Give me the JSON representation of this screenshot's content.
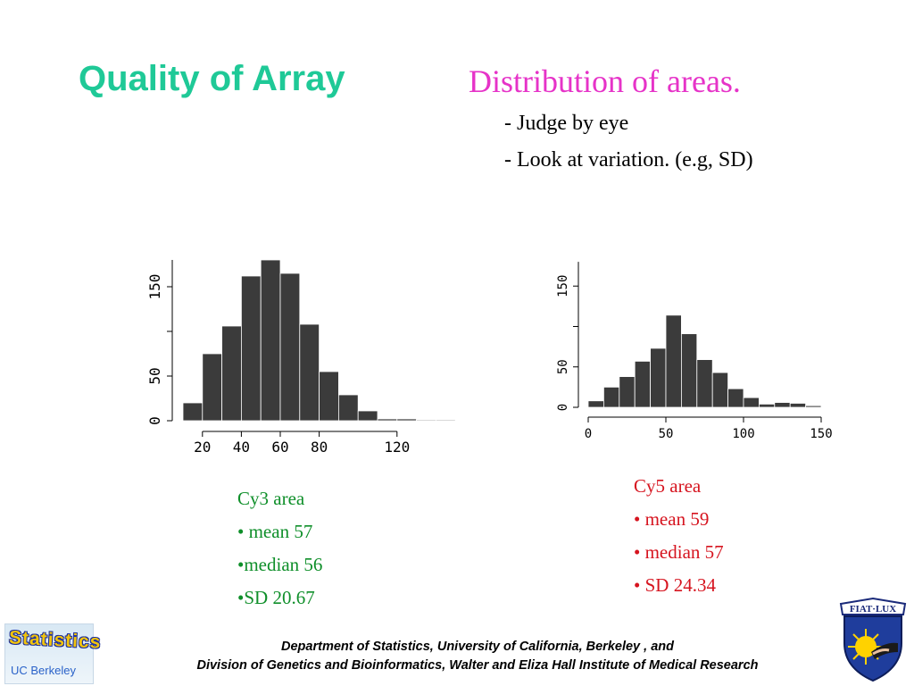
{
  "slide": {
    "title": "Quality of Array",
    "subtitle": "Distribution of areas.",
    "bullets": [
      "- Judge by eye",
      "- Look at variation. (e.g, SD)"
    ]
  },
  "chart_data": [
    {
      "type": "bar",
      "name": "Cy3 area histogram",
      "x_ticks": [
        20,
        40,
        60,
        80,
        120
      ],
      "y_ticks": [
        0,
        50,
        150
      ],
      "bin_width": 10,
      "bins": [
        10,
        20,
        30,
        40,
        50,
        60,
        70,
        80,
        90,
        100,
        110,
        120,
        130,
        140
      ],
      "values": [
        20,
        75,
        106,
        162,
        180,
        165,
        108,
        55,
        29,
        11,
        2,
        2,
        1,
        1
      ],
      "ylim": [
        0,
        180
      ]
    },
    {
      "type": "bar",
      "name": "Cy5 area histogram",
      "x_ticks": [
        0,
        50,
        100,
        150
      ],
      "y_ticks": [
        0,
        50,
        150
      ],
      "bin_width": 10,
      "bins": [
        0,
        10,
        20,
        30,
        40,
        50,
        60,
        70,
        80,
        90,
        100,
        110,
        120,
        130,
        140
      ],
      "values": [
        8,
        25,
        38,
        57,
        73,
        114,
        91,
        59,
        43,
        23,
        12,
        4,
        6,
        5,
        2
      ],
      "ylim": [
        0,
        180
      ]
    }
  ],
  "stats": {
    "cy3": [
      "Cy3 area",
      "• mean  57",
      "•median  56",
      "•SD  20.67"
    ],
    "cy5": [
      "Cy5 area",
      "• mean  59",
      "• median  57",
      "• SD  24.34"
    ]
  },
  "footer": {
    "line1": "Department of Statistics, University of California, Berkeley , and",
    "line2": "Division of Genetics and Bioinformatics, Walter and Eliza Hall Institute of Medical Research"
  },
  "logos": {
    "left_word": "Statistics",
    "left_sub": "UC Berkeley",
    "right_motto": "FIAT·LUX"
  }
}
